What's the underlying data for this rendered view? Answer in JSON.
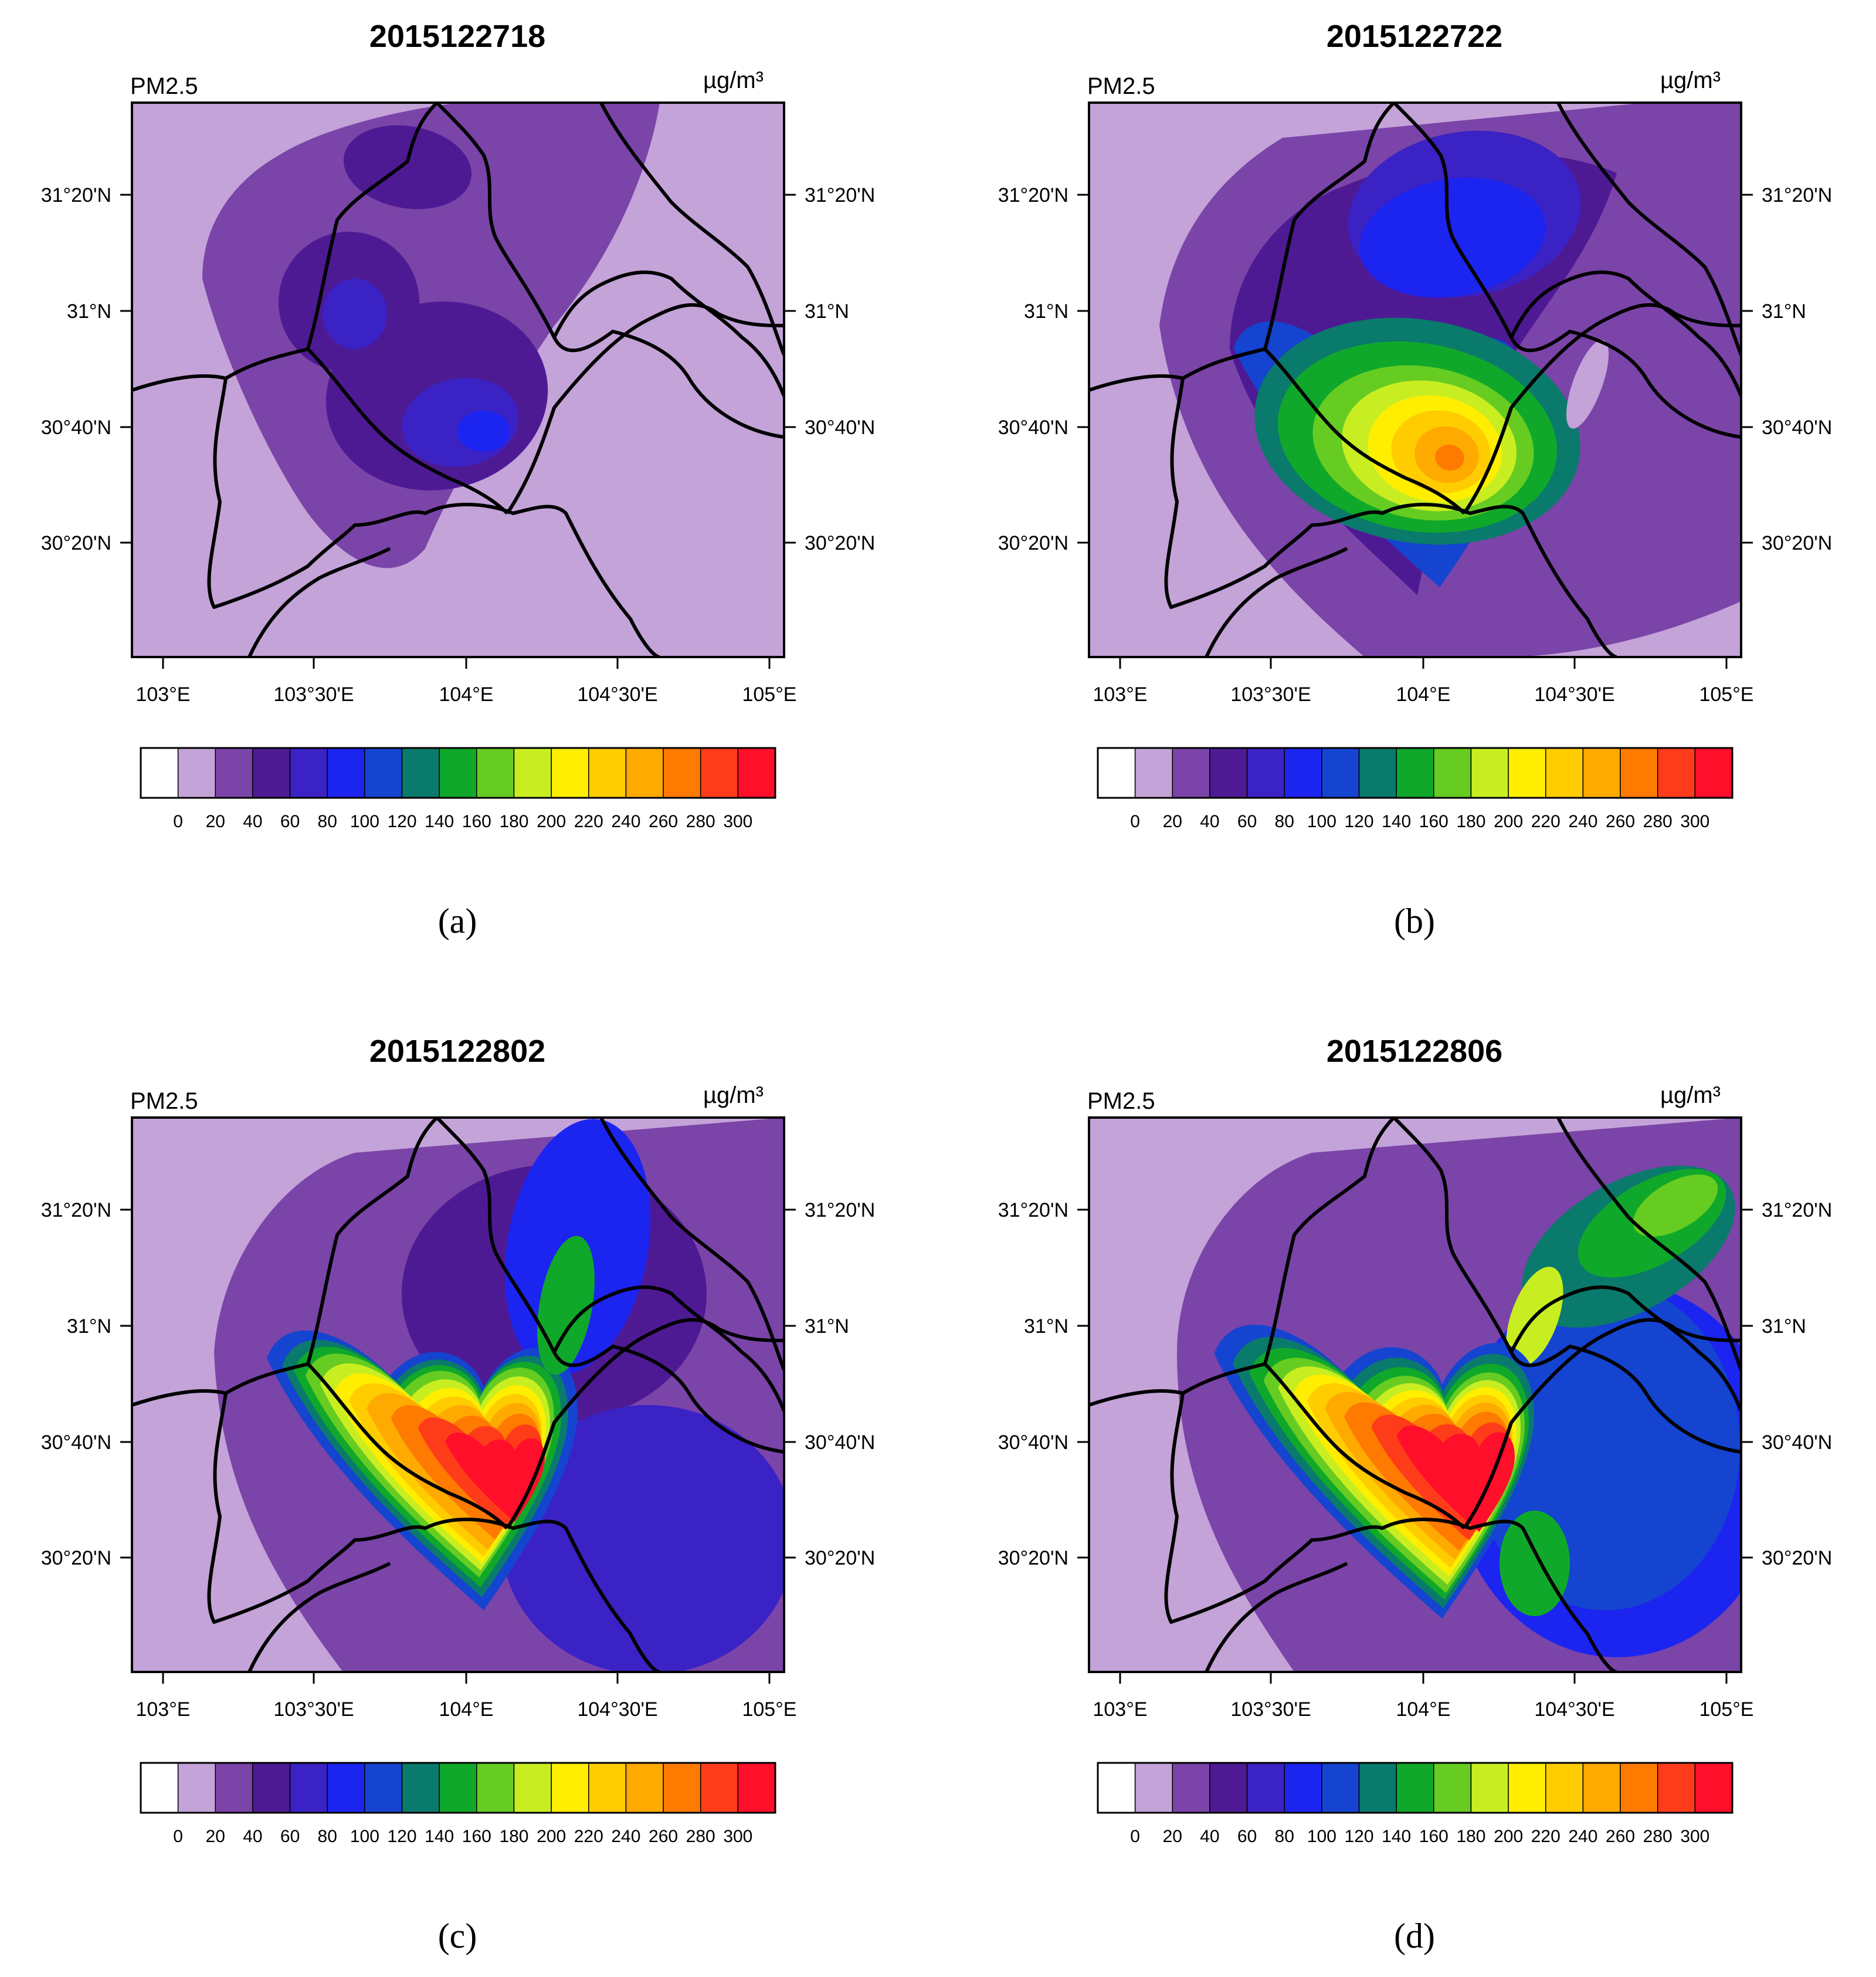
{
  "panels": [
    {
      "id": "a",
      "title": "2015122718",
      "field_label": "PM2.5",
      "unit_label": "µg/m³",
      "caption": "(a)",
      "hotspot_peak_class": "80-100",
      "lon_ticks": [
        "103°E",
        "103°30'E",
        "104°E",
        "104°30'E",
        "105°E"
      ],
      "lat_ticks": [
        "31°20'N",
        "31°N",
        "30°40'N",
        "30°20'N"
      ]
    },
    {
      "id": "b",
      "title": "2015122722",
      "field_label": "PM2.5",
      "unit_label": "µg/m³",
      "caption": "(b)",
      "hotspot_peak_class": "240-260",
      "lon_ticks": [
        "103°E",
        "103°30'E",
        "104°E",
        "104°30'E",
        "105°E"
      ],
      "lat_ticks": [
        "31°20'N",
        "31°N",
        "30°40'N",
        "30°20'N"
      ]
    },
    {
      "id": "c",
      "title": "2015122802",
      "field_label": "PM2.5",
      "unit_label": "µg/m³",
      "caption": "(c)",
      "hotspot_peak_class": ">300",
      "lon_ticks": [
        "103°E",
        "103°30'E",
        "104°E",
        "104°30'E",
        "105°E"
      ],
      "lat_ticks": [
        "31°20'N",
        "31°N",
        "30°40'N",
        "30°20'N"
      ]
    },
    {
      "id": "d",
      "title": "2015122806",
      "field_label": "PM2.5",
      "unit_label": "µg/m³",
      "caption": "(d)",
      "hotspot_peak_class": ">300",
      "lon_ticks": [
        "103°E",
        "103°30'E",
        "104°E",
        "104°30'E",
        "105°E"
      ],
      "lat_ticks": [
        "31°20'N",
        "31°N",
        "30°40'N",
        "30°20'N"
      ]
    }
  ],
  "colorbar": {
    "labels": [
      "0",
      "20",
      "40",
      "60",
      "80",
      "100",
      "120",
      "140",
      "160",
      "180",
      "200",
      "220",
      "240",
      "260",
      "280",
      "300"
    ],
    "colors": [
      "#ffffff",
      "#c3a3d8",
      "#7b44a8",
      "#4e1a94",
      "#3a22c4",
      "#1c24f0",
      "#1444d0",
      "#0a7a6c",
      "#10a82a",
      "#66cc22",
      "#c8ee22",
      "#ffee00",
      "#ffcc00",
      "#ffaa00",
      "#ff7a00",
      "#ff3c1a",
      "#ff0f2a"
    ]
  }
}
